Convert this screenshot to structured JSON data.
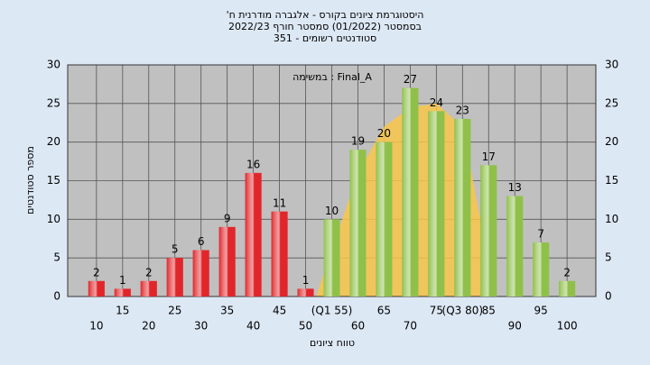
{
  "chart_data": {
    "type": "bar",
    "title": "היסטוגרמת ציונים בקורס - אלגברה מודרנית ח'",
    "subtitle": "בסמסטר (01/2022) סמסטר חורף 2022/23",
    "subtitle2": "סטודנטים רשומים - 351",
    "annotation": "Final_A : במשימה",
    "xlabel": "טווח ציונים",
    "ylabel": "מספר סטודנטים",
    "x": [
      10,
      15,
      20,
      25,
      30,
      35,
      40,
      45,
      50,
      55,
      60,
      65,
      70,
      75,
      80,
      85,
      90,
      95,
      100
    ],
    "values": [
      2,
      1,
      2,
      5,
      6,
      9,
      16,
      11,
      1,
      10,
      19,
      20,
      27,
      24,
      23,
      17,
      13,
      7,
      2
    ],
    "colors": [
      "#e0262b",
      "#e0262b",
      "#e0262b",
      "#e0262b",
      "#e0262b",
      "#e0262b",
      "#e0262b",
      "#e0262b",
      "#e0262b",
      "#8fc04a",
      "#8fc04a",
      "#8fc04a",
      "#8fc04a",
      "#8fc04a",
      "#8fc04a",
      "#8fc04a",
      "#8fc04a",
      "#8fc04a",
      "#8fc04a"
    ],
    "curve": {
      "color": "#f8c64a",
      "x": [
        52,
        55,
        60,
        65,
        70,
        75,
        80,
        84
      ],
      "values": [
        0,
        6,
        16,
        22,
        24.5,
        25,
        22,
        8
      ]
    },
    "xlim": [
      4.5,
      105.5
    ],
    "xticks": [
      10,
      15,
      20,
      25,
      30,
      35,
      40,
      45,
      50,
      {
        "value": 55,
        "label": "(Q1 55)"
      },
      60,
      65,
      70,
      75,
      {
        "value": 80,
        "label": "(Q3 80)"
      },
      85,
      90,
      95,
      100
    ],
    "ylim": [
      0,
      30
    ],
    "yticks": [
      0,
      5,
      10,
      15,
      20,
      25,
      30
    ],
    "y2lim": [
      0,
      30
    ],
    "y2ticks": [
      0,
      5,
      10,
      15,
      20,
      25,
      30
    ],
    "grid": true
  }
}
